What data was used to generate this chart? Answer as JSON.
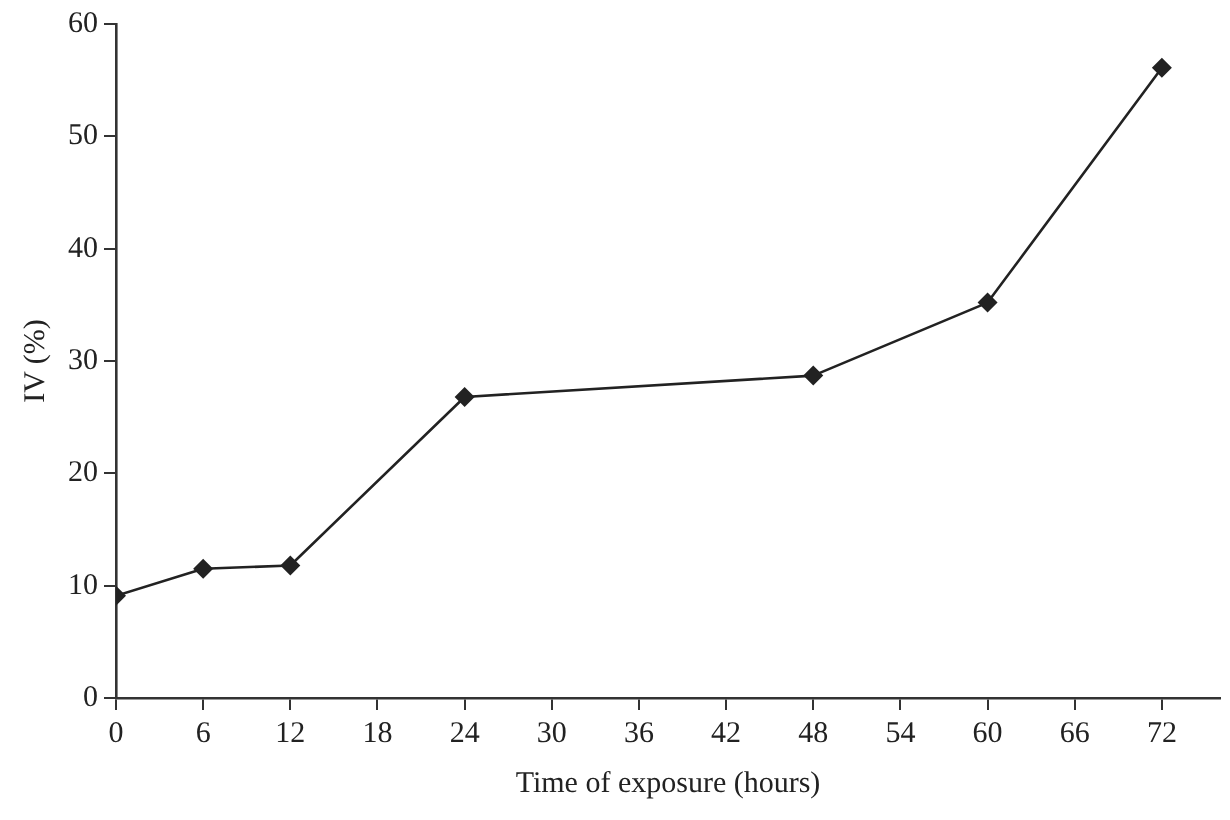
{
  "chart_data": {
    "type": "line",
    "xlabel": "Time of exposure (hours)",
    "ylabel": "IV (%)",
    "x": [
      0,
      6,
      12,
      24,
      48,
      60,
      72
    ],
    "series": [
      {
        "color": "#222222",
        "values": [
          9.1,
          11.5,
          11.8,
          26.8,
          28.7,
          35.2,
          56.1
        ]
      }
    ],
    "xlim": [
      0,
      76
    ],
    "xticks": [
      0,
      6,
      12,
      18,
      24,
      30,
      36,
      42,
      48,
      54,
      60,
      66,
      72
    ],
    "ylim": [
      0,
      60
    ],
    "yticks": [
      0,
      10,
      20,
      30,
      40,
      50,
      60
    ],
    "marker": "diamond",
    "line_style": "solid",
    "grid": false,
    "legend": false
  }
}
